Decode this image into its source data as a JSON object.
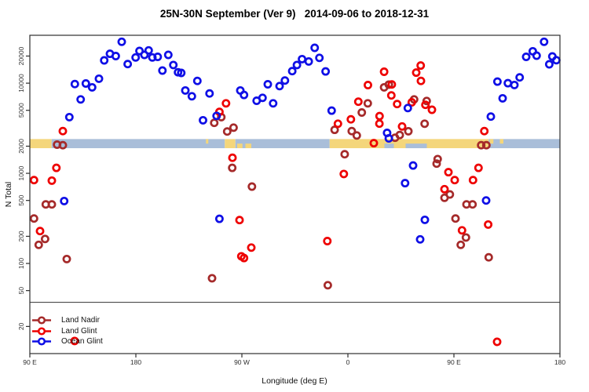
{
  "title": "25N-30N September (Ver 9)   2014-09-06 to 2018-12-31",
  "axes": {
    "x": {
      "label": "Longitude (deg E)",
      "tick_labels": [
        "90 E",
        "180",
        "90 W",
        "0",
        "90 E",
        "180"
      ],
      "tick_deg": [
        0,
        90,
        180,
        270,
        360,
        450
      ],
      "span_deg": 450
    },
    "y": {
      "label": "N Total",
      "scale": "log",
      "ticks": [
        20,
        50,
        100,
        200,
        500,
        1000,
        2000,
        5000,
        10000,
        20000
      ],
      "range": [
        10,
        34000
      ]
    }
  },
  "legend": {
    "items": [
      {
        "label": "Land Nadir",
        "color": "#A52A2A"
      },
      {
        "label": "Land Glint",
        "color": "#EE0000"
      },
      {
        "label": "Ocean Glint",
        "color": "#0F0FE6"
      }
    ]
  },
  "divider_n": 37,
  "map_band": {
    "n_range": [
      1900,
      2400
    ],
    "land_color": "#F4D67B",
    "ocean_color": "#A9BED9",
    "segments": [
      {
        "from": 0,
        "to": 18.5,
        "type": "land",
        "part": "full"
      },
      {
        "from": 18.5,
        "to": 165.5,
        "type": "ocean",
        "part": "full"
      },
      {
        "from": 149.5,
        "to": 151.5,
        "type": "land",
        "part": "top"
      },
      {
        "from": 165.5,
        "to": 174.5,
        "type": "land",
        "part": "full"
      },
      {
        "from": 174.5,
        "to": 254.5,
        "type": "ocean",
        "part": "full"
      },
      {
        "from": 176,
        "to": 180.5,
        "type": "land",
        "part": "bottom"
      },
      {
        "from": 183,
        "to": 188,
        "type": "land",
        "part": "bottom"
      },
      {
        "from": 254.5,
        "to": 389.5,
        "type": "land",
        "part": "full"
      },
      {
        "from": 301,
        "to": 309,
        "type": "ocean",
        "part": "bottom"
      },
      {
        "from": 319,
        "to": 337,
        "type": "ocean",
        "part": "bottom"
      },
      {
        "from": 389.5,
        "to": 450,
        "type": "ocean",
        "part": "full"
      },
      {
        "from": 390.5,
        "to": 393.5,
        "type": "land",
        "part": "top"
      },
      {
        "from": 399,
        "to": 402,
        "type": "land",
        "part": "top"
      }
    ]
  },
  "chart_data": {
    "type": "scatter",
    "x_axis_note": "degrees along axis from left edge; axis starts at 90E and wraps eastward 450 deg",
    "series": [
      {
        "name": "Land Nadir",
        "color": "#A52A2A",
        "points": [
          [
            23.1,
            2080
          ],
          [
            28,
            2050
          ],
          [
            13.5,
            452
          ],
          [
            18.7,
            452
          ],
          [
            3.5,
            315
          ],
          [
            12.9,
            187
          ],
          [
            7.5,
            161
          ],
          [
            31.3,
            112
          ],
          [
            154.7,
            68.5
          ],
          [
            171.8,
            1150
          ],
          [
            188.5,
            713
          ],
          [
            156.5,
            3630
          ],
          [
            162.5,
            4200
          ],
          [
            167.5,
            2910
          ],
          [
            172.9,
            3210
          ],
          [
            258.7,
            3040
          ],
          [
            267.3,
            1630
          ],
          [
            273.3,
            2940
          ],
          [
            277.5,
            2630
          ],
          [
            281.8,
            4730
          ],
          [
            286.9,
            5980
          ],
          [
            300.7,
            9000
          ],
          [
            304.7,
            9650
          ],
          [
            326.2,
            6610
          ],
          [
            336.9,
            6350
          ],
          [
            335.1,
            3550
          ],
          [
            310,
            2480
          ],
          [
            314,
            2660
          ],
          [
            321.3,
            2930
          ],
          [
            352,
            535
          ],
          [
            356.5,
            583
          ],
          [
            370.7,
            452
          ],
          [
            375.8,
            452
          ],
          [
            361.3,
            315
          ],
          [
            346.2,
            1440
          ],
          [
            345.3,
            1280
          ],
          [
            370.2,
            194
          ],
          [
            365.8,
            161
          ],
          [
            389.5,
            117
          ],
          [
            383.1,
            2050
          ],
          [
            387.5,
            2050
          ],
          [
            252.9,
            57.4
          ]
        ]
      },
      {
        "name": "Land Glint",
        "color": "#EE0000",
        "points": [
          [
            28,
            2940
          ],
          [
            3.5,
            841
          ],
          [
            18.7,
            830
          ],
          [
            22.5,
            1150
          ],
          [
            8.7,
            229
          ],
          [
            166.5,
            5980
          ],
          [
            160.9,
            4800
          ],
          [
            172,
            1490
          ],
          [
            178,
            303
          ],
          [
            188,
            150
          ],
          [
            179.5,
            120
          ],
          [
            181.8,
            115
          ],
          [
            252.5,
            177
          ],
          [
            261.5,
            3550
          ],
          [
            272.5,
            3970
          ],
          [
            278.9,
            6230
          ],
          [
            287,
            9530
          ],
          [
            266.5,
            984
          ],
          [
            300.7,
            13400
          ],
          [
            307.3,
            9690
          ],
          [
            331.8,
            15700
          ],
          [
            328,
            13100
          ],
          [
            332,
            10600
          ],
          [
            306.9,
            7310
          ],
          [
            311.8,
            5870
          ],
          [
            296.9,
            4310
          ],
          [
            296.7,
            3560
          ],
          [
            335.8,
            5750
          ],
          [
            341.3,
            5070
          ],
          [
            316,
            3310
          ],
          [
            324.2,
            6140
          ],
          [
            385.8,
            2940
          ],
          [
            292,
            2160
          ],
          [
            355.3,
            1030
          ],
          [
            360.7,
            841
          ],
          [
            380.9,
            1150
          ],
          [
            376.2,
            841
          ],
          [
            352,
            667
          ],
          [
            366.9,
            233
          ],
          [
            389.1,
            270
          ],
          [
            396.7,
            13.5
          ],
          [
            38,
            13.8
          ]
        ]
      },
      {
        "name": "Ocean Glint",
        "color": "#0F0FE6",
        "points": [
          [
            78,
            28800
          ],
          [
            68,
            21200
          ],
          [
            72.9,
            20000
          ],
          [
            63.1,
            17900
          ],
          [
            83.1,
            16300
          ],
          [
            89.8,
            19300
          ],
          [
            93.1,
            22800
          ],
          [
            97.3,
            20600
          ],
          [
            100.9,
            23100
          ],
          [
            104,
            19300
          ],
          [
            108.5,
            19600
          ],
          [
            117.5,
            20600
          ],
          [
            121.8,
            15900
          ],
          [
            125.8,
            13200
          ],
          [
            128.5,
            13000
          ],
          [
            112.5,
            13800
          ],
          [
            58.7,
            11200
          ],
          [
            47.5,
            9930
          ],
          [
            52.9,
            8990
          ],
          [
            38.2,
            9790
          ],
          [
            43.1,
            6610
          ],
          [
            142.2,
            10600
          ],
          [
            132,
            8300
          ],
          [
            137.5,
            7160
          ],
          [
            152.5,
            7700
          ],
          [
            147,
            3880
          ],
          [
            33.5,
            4200
          ],
          [
            158.5,
            4340
          ],
          [
            178.7,
            8300
          ],
          [
            181.8,
            7400
          ],
          [
            192.5,
            6390
          ],
          [
            197.5,
            6880
          ],
          [
            202,
            9730
          ],
          [
            206.5,
            5980
          ],
          [
            212,
            9290
          ],
          [
            216.5,
            10700
          ],
          [
            222.7,
            13600
          ],
          [
            226.7,
            15900
          ],
          [
            231.1,
            18500
          ],
          [
            236.7,
            17400
          ],
          [
            241.8,
            24700
          ],
          [
            245.8,
            19100
          ],
          [
            251.1,
            13500
          ],
          [
            256.2,
            4960
          ],
          [
            160.9,
            313
          ],
          [
            29.1,
            493
          ],
          [
            320.9,
            5300
          ],
          [
            303.3,
            2810
          ],
          [
            304.7,
            2440
          ],
          [
            325.3,
            1220
          ],
          [
            318.5,
            778
          ],
          [
            335.3,
            305
          ],
          [
            331.3,
            185
          ],
          [
            387.3,
            500
          ],
          [
            396.9,
            10400
          ],
          [
            405.8,
            10000
          ],
          [
            411.3,
            9550
          ],
          [
            415.8,
            11600
          ],
          [
            401.3,
            6790
          ],
          [
            391.3,
            4260
          ],
          [
            421.3,
            19600
          ],
          [
            426.9,
            22600
          ],
          [
            430.2,
            20200
          ],
          [
            436.5,
            28800
          ],
          [
            443.5,
            19800
          ],
          [
            446.9,
            18000
          ],
          [
            440.9,
            16200
          ]
        ]
      }
    ]
  }
}
